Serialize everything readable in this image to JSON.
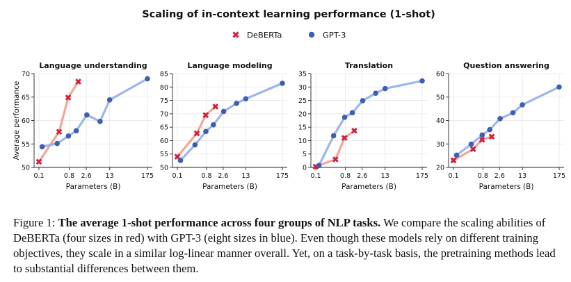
{
  "figure": {
    "title": "Scaling of in-context learning performance (1-shot)",
    "legend": [
      {
        "name": "DeBERTa",
        "color": "#cf1f3a",
        "marker": "x"
      },
      {
        "name": "GPT-3",
        "color": "#3d5fb0",
        "marker": "circle"
      }
    ],
    "colors": {
      "deberta_marker": "#cf1f3a",
      "deberta_line": "#f4a596",
      "gpt3_marker": "#3d5fb0",
      "gpt3_line": "#9db5ee"
    }
  },
  "chart_data": [
    {
      "type": "line",
      "title": "Language understanding",
      "xlabel": "Parameters (B)",
      "ylabel": "Average performance",
      "xscale": "log",
      "xticks": [
        0.1,
        0.8,
        2.6,
        13,
        175
      ],
      "xtick_labels": [
        "0.1",
        "0.8",
        "2.6",
        "13",
        "175"
      ],
      "ylim": [
        50,
        70
      ],
      "yticks": [
        50,
        55,
        60,
        65,
        70
      ],
      "grid": true,
      "series": [
        {
          "name": "DeBERTa",
          "x": [
            0.1,
            0.4,
            0.75,
            1.5
          ],
          "y": [
            51.2,
            57.6,
            64.9,
            68.3
          ]
        },
        {
          "name": "GPT-3",
          "x": [
            0.125,
            0.35,
            0.76,
            1.3,
            2.7,
            6.7,
            13,
            175
          ],
          "y": [
            54.4,
            55.1,
            56.7,
            57.8,
            61.2,
            59.8,
            64.4,
            68.9
          ]
        }
      ]
    },
    {
      "type": "line",
      "title": "Language modeling",
      "xlabel": "Parameters (B)",
      "ylabel": "",
      "xscale": "log",
      "xticks": [
        0.1,
        0.8,
        2.6,
        13,
        175
      ],
      "xtick_labels": [
        "0.1",
        "0.8",
        "2.6",
        "13",
        "175"
      ],
      "ylim": [
        50,
        85
      ],
      "yticks": [
        50,
        55,
        60,
        65,
        70,
        75,
        80,
        85
      ],
      "grid": true,
      "series": [
        {
          "name": "DeBERTa",
          "x": [
            0.1,
            0.4,
            0.75,
            1.5
          ],
          "y": [
            54.0,
            62.7,
            69.5,
            72.7
          ]
        },
        {
          "name": "GPT-3",
          "x": [
            0.125,
            0.35,
            0.76,
            1.3,
            2.7,
            6.7,
            13,
            175
          ],
          "y": [
            52.6,
            58.4,
            63.4,
            65.9,
            70.9,
            73.9,
            75.6,
            81.4
          ]
        }
      ]
    },
    {
      "type": "line",
      "title": "Translation",
      "xlabel": "Parameters (B)",
      "ylabel": "",
      "xscale": "log",
      "xticks": [
        0.1,
        0.8,
        2.6,
        13,
        175
      ],
      "xtick_labels": [
        "0.1",
        "0.8",
        "2.6",
        "13",
        "175"
      ],
      "ylim": [
        0,
        35
      ],
      "yticks": [
        0,
        5,
        10,
        15,
        20,
        25,
        30,
        35
      ],
      "grid": true,
      "series": [
        {
          "name": "DeBERTa",
          "x": [
            0.1,
            0.4,
            0.75,
            1.5
          ],
          "y": [
            0.3,
            3.0,
            11.0,
            13.7
          ]
        },
        {
          "name": "GPT-3",
          "x": [
            0.125,
            0.35,
            0.76,
            1.3,
            2.7,
            6.7,
            13,
            175
          ],
          "y": [
            0.7,
            11.8,
            18.7,
            20.4,
            24.9,
            27.7,
            29.4,
            32.3
          ]
        }
      ]
    },
    {
      "type": "line",
      "title": "Question answering",
      "xlabel": "Parameters (B)",
      "ylabel": "",
      "xscale": "log",
      "xticks": [
        0.1,
        0.8,
        2.6,
        13,
        175
      ],
      "xtick_labels": [
        "0.1",
        "0.8",
        "2.6",
        "13",
        "175"
      ],
      "ylim": [
        20,
        60
      ],
      "yticks": [
        20,
        30,
        40,
        50,
        60
      ],
      "grid": true,
      "series": [
        {
          "name": "DeBERTa",
          "x": [
            0.1,
            0.4,
            0.75,
            1.5
          ],
          "y": [
            23.0,
            27.8,
            31.8,
            33.1
          ]
        },
        {
          "name": "GPT-3",
          "x": [
            0.125,
            0.35,
            0.76,
            1.3,
            2.7,
            6.7,
            13,
            175
          ],
          "y": [
            25.2,
            29.9,
            33.8,
            36.1,
            40.8,
            43.3,
            46.7,
            54.3
          ]
        }
      ]
    }
  ],
  "caption": {
    "label": "Figure 1:",
    "bold": "The average 1-shot performance across four groups of NLP tasks.",
    "text": "We compare the scaling abilities of DeBERTa (four sizes in red) with GPT-3 (eight sizes in blue). Even though these models rely on different training objectives, they scale in a similar log-linear manner overall. Yet, on a task-by-task basis, the pretraining methods lead to substantial differences between them."
  }
}
